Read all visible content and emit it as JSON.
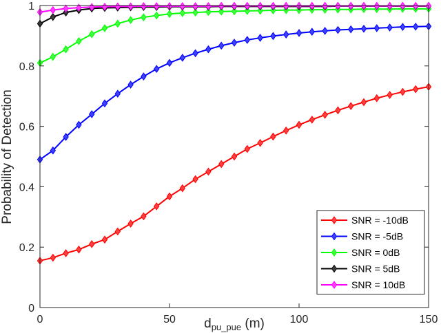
{
  "chart_data": {
    "type": "line",
    "title": "",
    "xlabel": {
      "main": "d",
      "subscript": "pu_pue",
      "unit": " (m)"
    },
    "ylabel": "Probability of Detection",
    "xlim": [
      0,
      150
    ],
    "ylim": [
      0,
      1
    ],
    "xticks": [
      0,
      50,
      100,
      150
    ],
    "xtick_labels": [
      "0",
      "50",
      "100",
      "150"
    ],
    "yticks": [
      0,
      0.2,
      0.4,
      0.6,
      0.8,
      1
    ],
    "ytick_labels": [
      "0",
      "0.2",
      "0.4",
      "0.6",
      "0.8",
      "1"
    ],
    "grid": false,
    "legend_position": "bottom-right",
    "marker": "diamond",
    "x": [
      0,
      5,
      10,
      15,
      20,
      25,
      30,
      35,
      40,
      45,
      50,
      55,
      60,
      65,
      70,
      75,
      80,
      85,
      90,
      95,
      100,
      105,
      110,
      115,
      120,
      125,
      130,
      135,
      140,
      145,
      150
    ],
    "series": [
      {
        "name": "SNR = -10dB",
        "color": "#ff0000",
        "values": [
          0.155,
          0.165,
          0.18,
          0.192,
          0.21,
          0.225,
          0.252,
          0.278,
          0.302,
          0.335,
          0.368,
          0.395,
          0.425,
          0.45,
          0.475,
          0.5,
          0.525,
          0.545,
          0.566,
          0.586,
          0.605,
          0.622,
          0.638,
          0.653,
          0.667,
          0.68,
          0.693,
          0.704,
          0.714,
          0.723,
          0.731
        ]
      },
      {
        "name": "SNR = -5dB",
        "color": "#0000ff",
        "values": [
          0.49,
          0.52,
          0.565,
          0.605,
          0.64,
          0.676,
          0.708,
          0.738,
          0.765,
          0.79,
          0.81,
          0.827,
          0.842,
          0.855,
          0.867,
          0.877,
          0.886,
          0.893,
          0.899,
          0.904,
          0.909,
          0.913,
          0.916,
          0.919,
          0.921,
          0.923,
          0.925,
          0.927,
          0.929,
          0.93,
          0.931
        ]
      },
      {
        "name": "SNR = 0dB",
        "color": "#00ff00",
        "values": [
          0.81,
          0.83,
          0.855,
          0.882,
          0.905,
          0.925,
          0.94,
          0.952,
          0.961,
          0.967,
          0.972,
          0.975,
          0.977,
          0.979,
          0.98,
          0.981,
          0.982,
          0.983,
          0.984,
          0.985,
          0.985,
          0.986,
          0.986,
          0.987,
          0.987,
          0.988,
          0.988,
          0.988,
          0.989,
          0.989,
          0.989
        ]
      },
      {
        "name": "SNR = 5dB",
        "color": "#000000",
        "values": [
          0.94,
          0.962,
          0.977,
          0.985,
          0.99,
          0.992,
          0.993,
          0.994,
          0.995,
          0.995,
          0.996,
          0.996,
          0.996,
          0.996,
          0.997,
          0.997,
          0.997,
          0.997,
          0.997,
          0.997,
          0.997,
          0.997,
          0.997,
          0.998,
          0.998,
          0.998,
          0.998,
          0.998,
          0.998,
          0.998,
          0.998
        ]
      },
      {
        "name": "SNR = 10dB",
        "color": "#ff00ff",
        "values": [
          0.978,
          0.985,
          0.99,
          0.993,
          0.995,
          0.996,
          0.997,
          0.997,
          0.998,
          0.998,
          0.998,
          0.998,
          0.998,
          0.998,
          0.999,
          0.999,
          0.999,
          0.999,
          0.999,
          0.999,
          0.999,
          0.999,
          0.999,
          0.999,
          0.999,
          0.999,
          0.999,
          0.999,
          0.999,
          0.999,
          0.999
        ]
      }
    ]
  }
}
